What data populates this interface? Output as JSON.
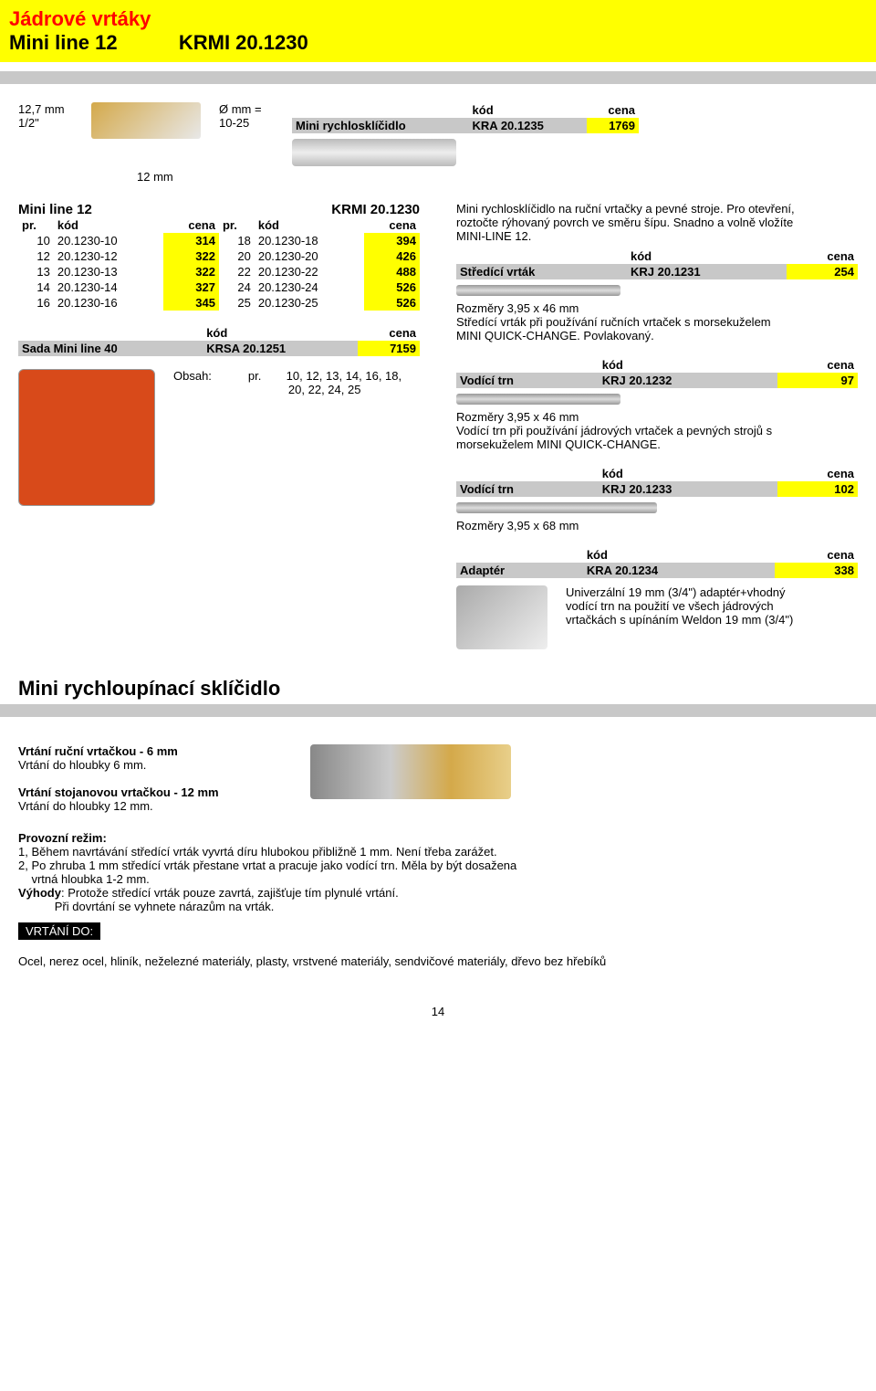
{
  "banner": {
    "line1a": "Jádrové vrtáky",
    "line1b": "Mini line 12",
    "line1c": "KRMI 20.1230"
  },
  "topDims": {
    "l1": "12,7 mm",
    "l2": "1/2\"",
    "r1": "Ø mm =",
    "r2": "10-25",
    "below": "12 mm"
  },
  "chuck": {
    "kod": "kód",
    "cena": "cena",
    "name": "Mini rychlosklíčidlo",
    "code": "KRA 20.1235",
    "price": "1769"
  },
  "tableTitle": {
    "left": "Mini line 12",
    "right": "KRMI 20.1230"
  },
  "tableHdr": {
    "pr": "pr.",
    "kod": "kód",
    "cena": "cena"
  },
  "rows": [
    {
      "p1": "10",
      "c1": "20.1230-10",
      "v1": "314",
      "p2": "18",
      "c2": "20.1230-18",
      "v2": "394"
    },
    {
      "p1": "12",
      "c1": "20.1230-12",
      "v1": "322",
      "p2": "20",
      "c2": "20.1230-20",
      "v2": "426"
    },
    {
      "p1": "13",
      "c1": "20.1230-13",
      "v1": "322",
      "p2": "22",
      "c2": "20.1230-22",
      "v2": "488"
    },
    {
      "p1": "14",
      "c1": "20.1230-14",
      "v1": "327",
      "p2": "24",
      "c2": "20.1230-24",
      "v2": "526"
    },
    {
      "p1": "16",
      "c1": "20.1230-16",
      "v1": "345",
      "p2": "25",
      "c2": "20.1230-25",
      "v2": "526"
    }
  ],
  "sada": {
    "kod": "kód",
    "cena": "cena",
    "name": "Sada Mini line 40",
    "code": "KRSA 20.1251",
    "price": "7159"
  },
  "obsah": {
    "label": "Obsah:",
    "pr": "pr.",
    "line1": "10, 12, 13, 14, 16, 18,",
    "line2": "20, 22, 24, 25"
  },
  "desc1": {
    "l1": "Mini rychlosklíčidlo na ruční vrtačky a pevné stroje. Pro otevření,",
    "l2": "roztočte rýhovaný povrch ve směru šípu. Snadno a volně vložíte",
    "l3": "MINI-LINE 12."
  },
  "center": {
    "kod": "kód",
    "cena": "cena",
    "name": "Středící vrták",
    "code": "KRJ 20.1231",
    "price": "254",
    "dim": "Rozměry 3,95 x 46 mm",
    "d1": "Středící vrták při používání ručních vrtaček s morsekuželem",
    "d2": "MINI QUICK-CHANGE. Povlakovaný."
  },
  "trn1": {
    "kod": "kód",
    "cena": "cena",
    "name": "Vodící trn",
    "code": "KRJ 20.1232",
    "price": "97",
    "dim": "Rozměry 3,95 x 46 mm",
    "d1": "Vodící trn  při používání jádrových vrtaček a pevných strojů s",
    "d2": "morsekuželem MINI QUICK-CHANGE."
  },
  "trn2": {
    "kod": "kód",
    "cena": "cena",
    "name": "Vodící trn",
    "code": "KRJ 20.1233",
    "price": "102",
    "dim": "Rozměry 3,95 x 68 mm"
  },
  "adapter": {
    "kod": "kód",
    "cena": "cena",
    "name": "Adaptér",
    "code": "KRA 20.1234",
    "price": "338",
    "d1": "Univerzální 19 mm (3/4\") adaptér+vhodný",
    "d2": "vodící trn na použití ve všech jádrových",
    "d3": "vrtačkách s upínáním Weldon 19 mm (3/4\")"
  },
  "section2": "Mini rychloupínací sklíčidlo",
  "bot": {
    "b1a": "Vrtání ruční vrtačkou - 6 mm",
    "b1b": "Vrtání do hloubky 6 mm.",
    "b2a": "Vrtání stojanovou vrtačkou - 12 mm",
    "b2b": "Vrtání do hloubky 12 mm.",
    "p0": "Provozní režim:",
    "p1": "1, Během navrtávání středící vrták vyvrtá díru hlubokou přibližně 1 mm. Není třeba zarážet.",
    "p2": "2, Po zhruba 1 mm středící vrták přestane vrtat a pracuje jako vodící trn. Měla by být dosažena",
    "p2b": "    vrtná hloubka 1-2 mm.",
    "v1": "Výhody",
    "v1b": ": Protože středící vrták pouze zavrtá, zajišťuje tím plynulé vrtání.",
    "v2": "           Při dovrtání se vyhnete nárazům na vrták.",
    "bar": "VRTÁNÍ DO:",
    "mat": "Ocel, nerez ocel, hliník, neželezné materiály, plasty,  vrstvené materiály, sendvičové materiály, dřevo bez hřebíků"
  },
  "page": "14"
}
